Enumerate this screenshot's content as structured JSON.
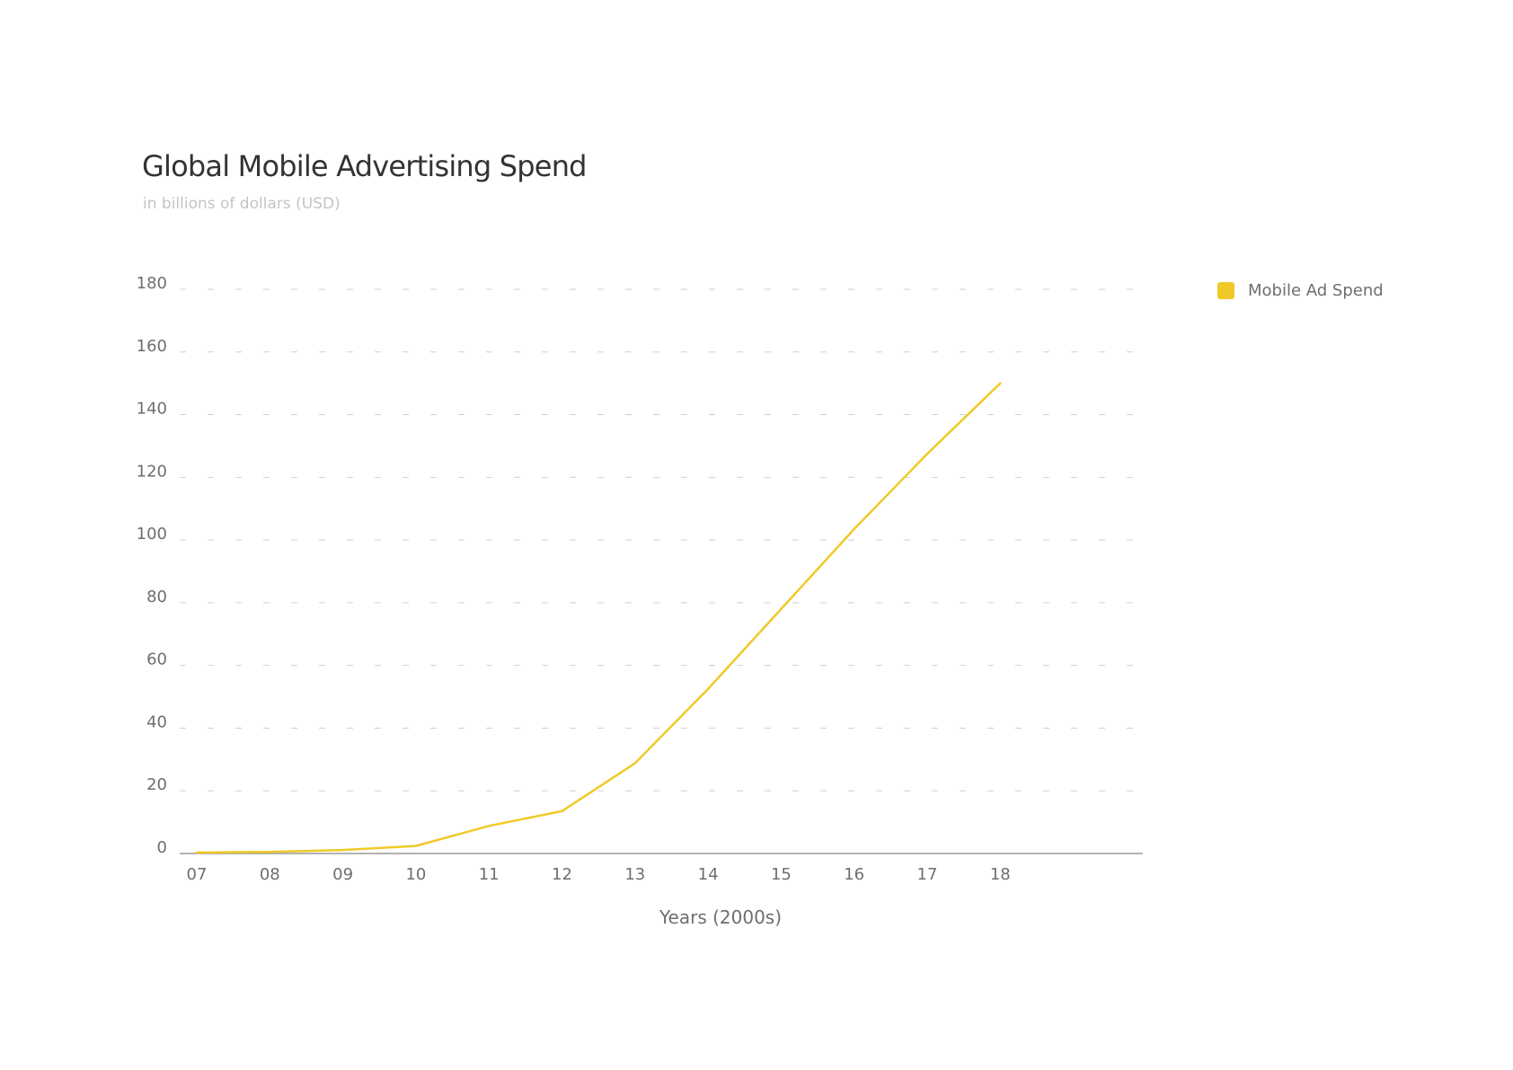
{
  "chart_data": {
    "type": "line",
    "title": "Global Mobile Advertising Spend",
    "subtitle": "in billions of dollars (USD)",
    "xlabel": "Years (2000s)",
    "ylabel": "",
    "categories": [
      "07",
      "08",
      "09",
      "10",
      "11",
      "12",
      "13",
      "14",
      "15",
      "16",
      "17",
      "18"
    ],
    "series": [
      {
        "name": "Mobile Ad Spend",
        "color": "#f0c929",
        "values": [
          0.3,
          0.5,
          1.1,
          2.4,
          8.8,
          13.5,
          28.8,
          52.5,
          78.0,
          103.5,
          127.5,
          150.0
        ]
      }
    ],
    "yticks": [
      "0",
      "20",
      "40",
      "60",
      "80",
      "100",
      "120",
      "140",
      "160",
      "180"
    ],
    "ylim": [
      0,
      180
    ],
    "grid": true,
    "gridStyle": "dashed",
    "legend": "right"
  }
}
